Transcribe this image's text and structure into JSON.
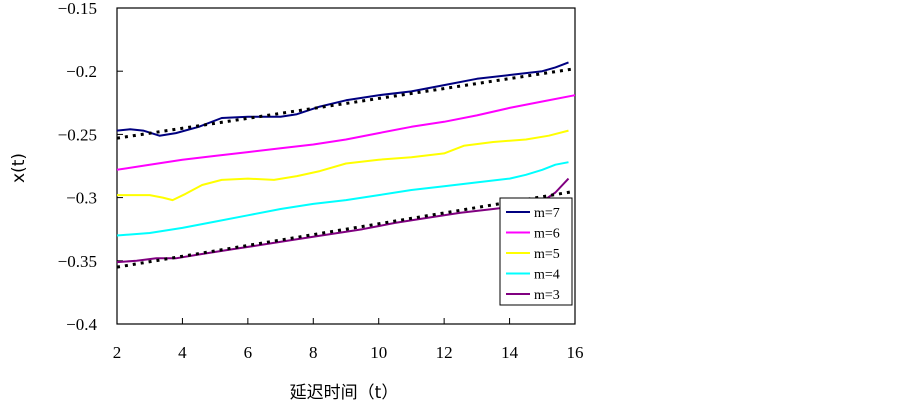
{
  "chart_data": {
    "type": "line",
    "title": "",
    "xlabel": "延迟时间（t）",
    "ylabel": "x(t)",
    "xlim": [
      2,
      16
    ],
    "ylim": [
      -0.4,
      -0.15
    ],
    "xticks": [
      2,
      4,
      6,
      8,
      10,
      12,
      14,
      16
    ],
    "xtick_labels": [
      "2",
      "4",
      "6",
      "8",
      "10",
      "12",
      "14",
      "16"
    ],
    "yticks": [
      -0.15,
      -0.2,
      -0.25,
      -0.3,
      -0.35,
      -0.4
    ],
    "ytick_labels": [
      "−0.15",
      "−0.2",
      "−0.25",
      "−0.3",
      "−0.35",
      "−0.4"
    ],
    "grid": false,
    "legend_position": "bottom-right",
    "series": [
      {
        "name": "m=7",
        "color": "#000080",
        "x": [
          2,
          2.4,
          2.8,
          3.3,
          3.8,
          4.5,
          5.2,
          6,
          7,
          7.5,
          8.2,
          9,
          10,
          11,
          12,
          13,
          14,
          15,
          15.4,
          15.8
        ],
        "y": [
          -0.247,
          -0.246,
          -0.247,
          -0.251,
          -0.249,
          -0.244,
          -0.237,
          -0.236,
          -0.236,
          -0.234,
          -0.228,
          -0.223,
          -0.219,
          -0.216,
          -0.211,
          -0.206,
          -0.203,
          -0.2,
          -0.197,
          -0.193
        ]
      },
      {
        "name": "m=6",
        "color": "#ff00ff",
        "x": [
          2,
          3,
          4,
          5,
          6,
          7,
          8,
          9,
          10,
          11,
          12,
          13,
          14,
          15,
          16
        ],
        "y": [
          -0.278,
          -0.274,
          -0.27,
          -0.267,
          -0.264,
          -0.261,
          -0.258,
          -0.254,
          -0.249,
          -0.244,
          -0.24,
          -0.235,
          -0.229,
          -0.224,
          -0.219
        ]
      },
      {
        "name": "m=5",
        "color": "#ffff00",
        "x": [
          2,
          3,
          3.4,
          3.7,
          4.1,
          4.6,
          5.2,
          6,
          6.8,
          7.5,
          8.2,
          9,
          10,
          11,
          12,
          12.6,
          13.5,
          14.5,
          15.2,
          15.8
        ],
        "y": [
          -0.298,
          -0.298,
          -0.3,
          -0.302,
          -0.297,
          -0.29,
          -0.286,
          -0.285,
          -0.286,
          -0.283,
          -0.279,
          -0.273,
          -0.27,
          -0.268,
          -0.265,
          -0.259,
          -0.256,
          -0.254,
          -0.251,
          -0.247
        ]
      },
      {
        "name": "m=4",
        "color": "#00ffff",
        "x": [
          2,
          3,
          4,
          5,
          6,
          7,
          8,
          9,
          10,
          11,
          12,
          13,
          14,
          14.5,
          15,
          15.4,
          15.8
        ],
        "y": [
          -0.33,
          -0.328,
          -0.324,
          -0.319,
          -0.314,
          -0.309,
          -0.305,
          -0.302,
          -0.298,
          -0.294,
          -0.291,
          -0.288,
          -0.285,
          -0.282,
          -0.278,
          -0.274,
          -0.272
        ]
      },
      {
        "name": "m=3",
        "color": "#800080",
        "x": [
          2,
          2.6,
          3.2,
          3.8,
          4.5,
          5.5,
          6.5,
          7.5,
          8.5,
          9.5,
          10.5,
          11.5,
          12.5,
          13.5,
          14.5,
          15,
          15.4,
          15.8
        ],
        "y": [
          -0.351,
          -0.35,
          -0.348,
          -0.348,
          -0.345,
          -0.341,
          -0.337,
          -0.333,
          -0.329,
          -0.325,
          -0.32,
          -0.316,
          -0.312,
          -0.309,
          -0.306,
          -0.303,
          -0.296,
          -0.285
        ]
      }
    ],
    "trend_lines": [
      {
        "color": "#000000",
        "dash": "dotted",
        "x": [
          2,
          16
        ],
        "y": [
          -0.253,
          -0.198
        ]
      },
      {
        "color": "#000000",
        "dash": "dotted",
        "x": [
          2,
          16
        ],
        "y": [
          -0.355,
          -0.295
        ]
      }
    ]
  }
}
